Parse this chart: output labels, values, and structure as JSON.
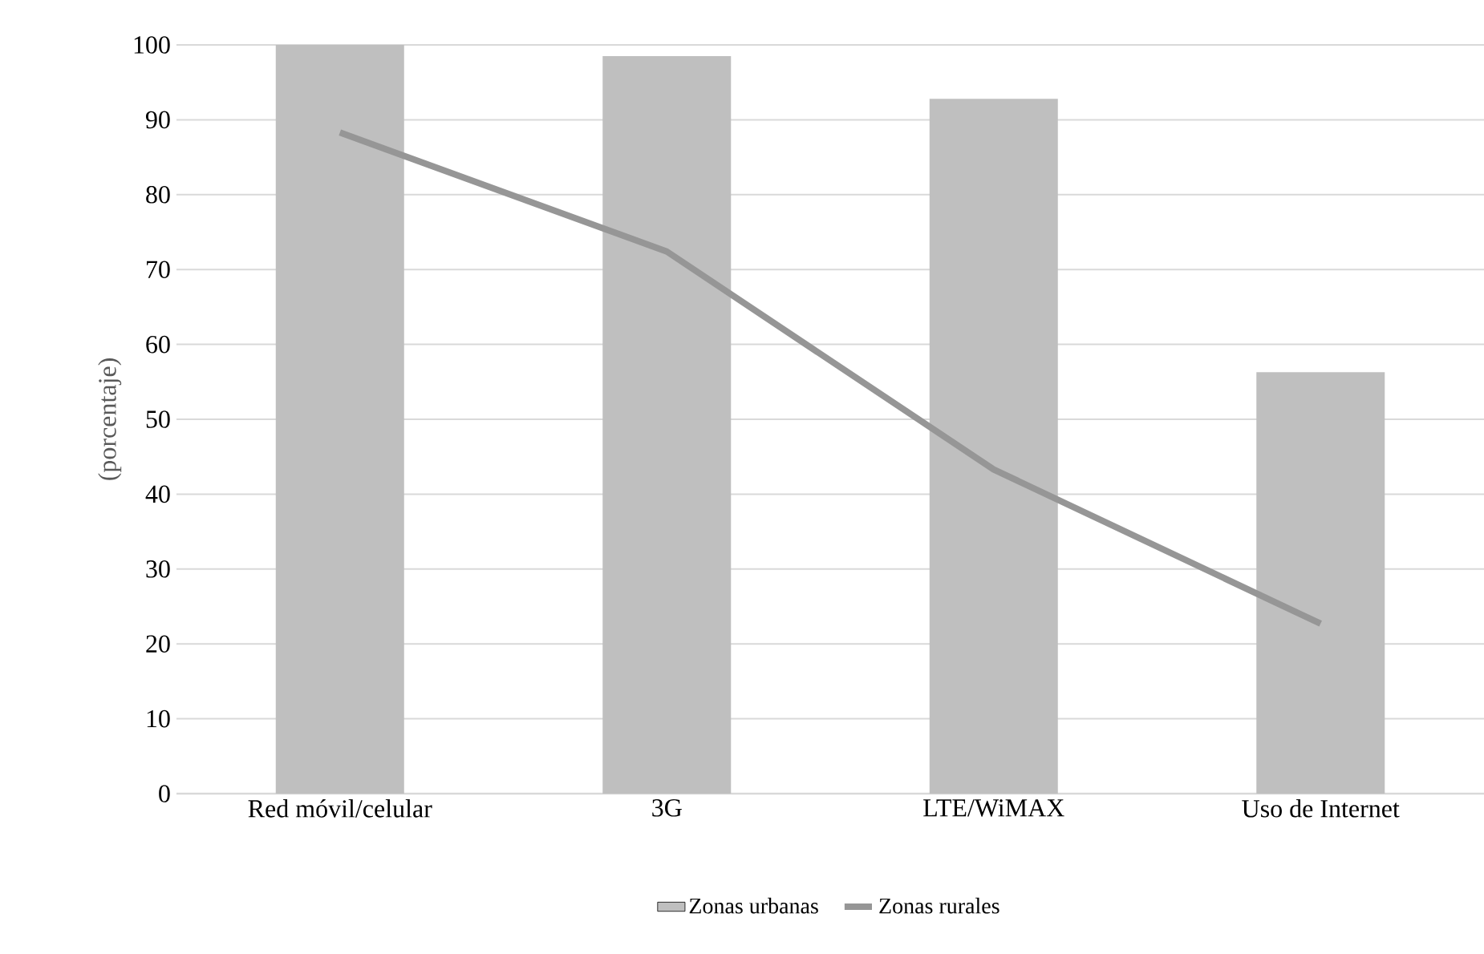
{
  "chart_data": {
    "type": "bar",
    "ylabel": "(porcentaje)",
    "categories": [
      "Red móvil/celular",
      "3G",
      "LTE/WiMAX",
      "Uso de Internet"
    ],
    "series": [
      {
        "name": "Zonas urbanas",
        "color": "#bfbfbf",
        "values": [
          100,
          98.5,
          92.8,
          56.3
        ]
      },
      {
        "name": "Zonas rurales",
        "type": "line",
        "color": "#969696",
        "values": [
          88.3,
          72.4,
          43.3,
          22.7
        ]
      }
    ],
    "ylim": [
      0,
      100
    ],
    "yticks": [
      0,
      10,
      20,
      30,
      40,
      50,
      60,
      70,
      80,
      90,
      100
    ],
    "grid": "y",
    "legend": "bottom",
    "marker": "none",
    "line_style": "solid"
  }
}
